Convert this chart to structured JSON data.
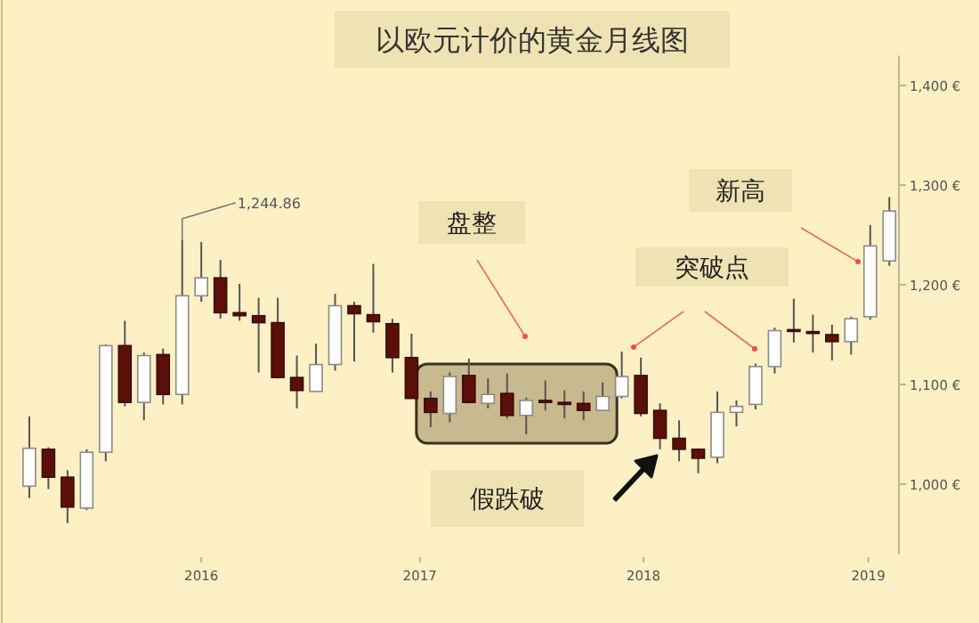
{
  "chart_data": {
    "type": "candlestick",
    "title": "以欧元计价的黄金月线图",
    "x": [
      "2015-10",
      "2015-11",
      "2015-12",
      "2016-01",
      "2016-02",
      "2016-03",
      "2016-04",
      "2016-05",
      "2016-06",
      "2016-07",
      "2016-08",
      "2016-09",
      "2016-10",
      "2016-11",
      "2016-12",
      "2017-01",
      "2017-02",
      "2017-03",
      "2017-04",
      "2017-05",
      "2017-06",
      "2017-07",
      "2017-08",
      "2017-09",
      "2017-10",
      "2017-11",
      "2017-12",
      "2018-01",
      "2018-02",
      "2018-03",
      "2018-04",
      "2018-05",
      "2018-06",
      "2018-07",
      "2018-08",
      "2018-09",
      "2018-10",
      "2018-11",
      "2018-12",
      "2019-01",
      "2019-02",
      "2019-03",
      "2019-04",
      "2019-05",
      "2019-06",
      "2019-07"
    ],
    "ohlc": [
      [
        998,
        1068,
        986,
        1036
      ],
      [
        1035,
        1037,
        995,
        1007
      ],
      [
        1007,
        1014,
        961,
        977
      ],
      [
        976,
        1035,
        974,
        1032
      ],
      [
        1032,
        1140,
        1023,
        1139
      ],
      [
        1139,
        1164,
        1078,
        1082
      ],
      [
        1082,
        1132,
        1064,
        1129
      ],
      [
        1130,
        1136,
        1080,
        1090
      ],
      [
        1090,
        1244.86,
        1080,
        1189
      ],
      [
        1189,
        1243,
        1183,
        1207
      ],
      [
        1207,
        1225,
        1166,
        1172
      ],
      [
        1172,
        1201,
        1164,
        1169
      ],
      [
        1169,
        1187,
        1112,
        1162
      ],
      [
        1162,
        1187,
        1106,
        1107
      ],
      [
        1107,
        1129,
        1076,
        1094
      ],
      [
        1093,
        1141,
        1093,
        1120
      ],
      [
        1120,
        1191,
        1114,
        1179
      ],
      [
        1179,
        1183,
        1123,
        1171
      ],
      [
        1170,
        1221,
        1152,
        1163
      ],
      [
        1161,
        1166,
        1112,
        1127
      ],
      [
        1127,
        1151,
        1086,
        1086
      ],
      [
        1086,
        1093,
        1057,
        1072
      ],
      [
        1071,
        1112,
        1062,
        1108
      ],
      [
        1109,
        1126,
        1081,
        1082
      ],
      [
        1081,
        1106,
        1076,
        1090
      ],
      [
        1091,
        1111,
        1066,
        1069
      ],
      [
        1069,
        1087,
        1050,
        1084
      ],
      [
        1084,
        1104,
        1074,
        1082
      ],
      [
        1082,
        1094,
        1066,
        1080
      ],
      [
        1081,
        1093,
        1064,
        1074
      ],
      [
        1074,
        1102,
        1074,
        1088
      ],
      [
        1088,
        1133,
        1086,
        1108
      ],
      [
        1109,
        1127,
        1068,
        1071
      ],
      [
        1074,
        1081,
        1035,
        1046
      ],
      [
        1046,
        1064,
        1023,
        1035
      ],
      [
        1035,
        1036,
        1011,
        1026
      ],
      [
        1027,
        1093,
        1021,
        1072
      ],
      [
        1072,
        1084,
        1058,
        1078
      ],
      [
        1080,
        1121,
        1075,
        1118
      ],
      [
        1118,
        1157,
        1111,
        1154
      ],
      [
        1155,
        1186,
        1142,
        1154
      ],
      [
        1153,
        1170,
        1132,
        1152
      ],
      [
        1150,
        1160,
        1124,
        1143
      ],
      [
        1143,
        1168,
        1130,
        1166
      ],
      [
        1168,
        1260,
        1165,
        1239
      ],
      [
        1224,
        1288,
        1219,
        1274
      ]
    ],
    "xlim": [
      "2015-08-15",
      "2019-07-16"
    ],
    "xticks": [
      {
        "value": "2016-07-01",
        "label": "2016"
      },
      {
        "value": "2017-06-14",
        "label": "2017"
      },
      {
        "value": "2018-06-05",
        "label": "2018"
      },
      {
        "value": "2019-05-28",
        "label": "2019"
      }
    ],
    "ylim": [
      930,
      1430
    ],
    "yticks": [
      {
        "value": 1000,
        "label": "1,000 €"
      },
      {
        "value": 1100,
        "label": "1,100 €"
      },
      {
        "value": 1200,
        "label": "1,200 €"
      },
      {
        "value": 1300,
        "label": "1,300 €"
      },
      {
        "value": 1400,
        "label": "1,400 €"
      }
    ],
    "annotations": [
      {
        "text": "1,244.86",
        "x": "2016-06",
        "y": 1244.86
      },
      "盘整",
      "突破点",
      "新高",
      "假跌破"
    ]
  }
}
